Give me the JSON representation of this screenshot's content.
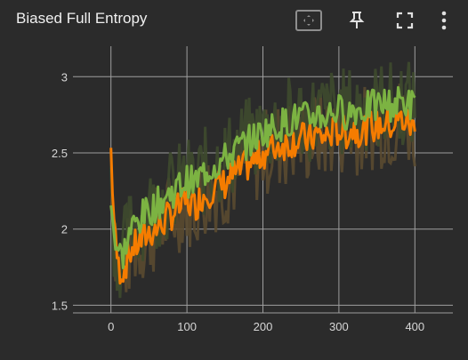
{
  "card": {
    "title": "Biased Full Entropy",
    "toolbar": [
      {
        "name": "fit-domain-icon"
      },
      {
        "name": "pin-icon"
      },
      {
        "name": "fullscreen-icon"
      },
      {
        "name": "more-vert-icon"
      }
    ]
  },
  "colors": {
    "background": "#2b2b2b",
    "grid": "#9e9e9e",
    "orange": "#f57c00",
    "green": "#7cb342",
    "shadow_orange": "#5a4a30",
    "shadow_green": "#3e4a2e"
  },
  "chart_data": {
    "type": "line",
    "title": "Biased Full Entropy",
    "xlabel": "",
    "ylabel": "",
    "xlim": [
      -50,
      450
    ],
    "ylim": [
      1.45,
      3.2
    ],
    "xticks": [
      "0",
      "100",
      "200",
      "300",
      "400"
    ],
    "xtick_values": [
      0,
      100,
      200,
      300,
      400
    ],
    "yticks": [
      "1.5",
      "2",
      "2.5",
      "3"
    ],
    "ytick_values": [
      1.5,
      2,
      2.5,
      3
    ],
    "grid": true,
    "series": [
      {
        "color": "#f57c00",
        "x": [
          0,
          5,
          10,
          15,
          20,
          25,
          30,
          40,
          50,
          60,
          70,
          80,
          90,
          100,
          110,
          120,
          130,
          140,
          150,
          160,
          170,
          180,
          190,
          200,
          210,
          220,
          230,
          240,
          250,
          260,
          270,
          280,
          290,
          300,
          310,
          320,
          330,
          340,
          350,
          360,
          370,
          380,
          390,
          400
        ],
        "values": [
          2.52,
          1.95,
          1.75,
          1.72,
          1.78,
          1.85,
          1.88,
          1.92,
          1.98,
          2.0,
          2.05,
          2.1,
          2.14,
          2.18,
          2.15,
          2.22,
          2.25,
          2.28,
          2.3,
          2.35,
          2.38,
          2.42,
          2.45,
          2.5,
          2.52,
          2.55,
          2.56,
          2.58,
          2.6,
          2.58,
          2.62,
          2.6,
          2.63,
          2.65,
          2.63,
          2.66,
          2.64,
          2.68,
          2.67,
          2.7,
          2.68,
          2.72,
          2.7,
          2.65
        ]
      },
      {
        "color": "#7cb342",
        "x": [
          0,
          5,
          10,
          15,
          20,
          25,
          30,
          40,
          50,
          60,
          70,
          80,
          90,
          100,
          110,
          120,
          130,
          140,
          150,
          160,
          170,
          180,
          190,
          200,
          210,
          220,
          230,
          240,
          250,
          260,
          270,
          280,
          290,
          300,
          310,
          320,
          330,
          340,
          350,
          360,
          370,
          380,
          390,
          400
        ],
        "values": [
          2.25,
          1.92,
          1.85,
          1.82,
          1.9,
          1.98,
          2.02,
          2.08,
          2.12,
          2.16,
          2.2,
          2.24,
          2.28,
          2.32,
          2.3,
          2.36,
          2.4,
          2.43,
          2.46,
          2.5,
          2.54,
          2.57,
          2.6,
          2.64,
          2.66,
          2.68,
          2.7,
          2.72,
          2.74,
          2.72,
          2.76,
          2.74,
          2.77,
          2.78,
          2.76,
          2.79,
          2.78,
          2.81,
          2.8,
          2.83,
          2.81,
          2.84,
          2.83,
          2.8
        ]
      }
    ]
  }
}
